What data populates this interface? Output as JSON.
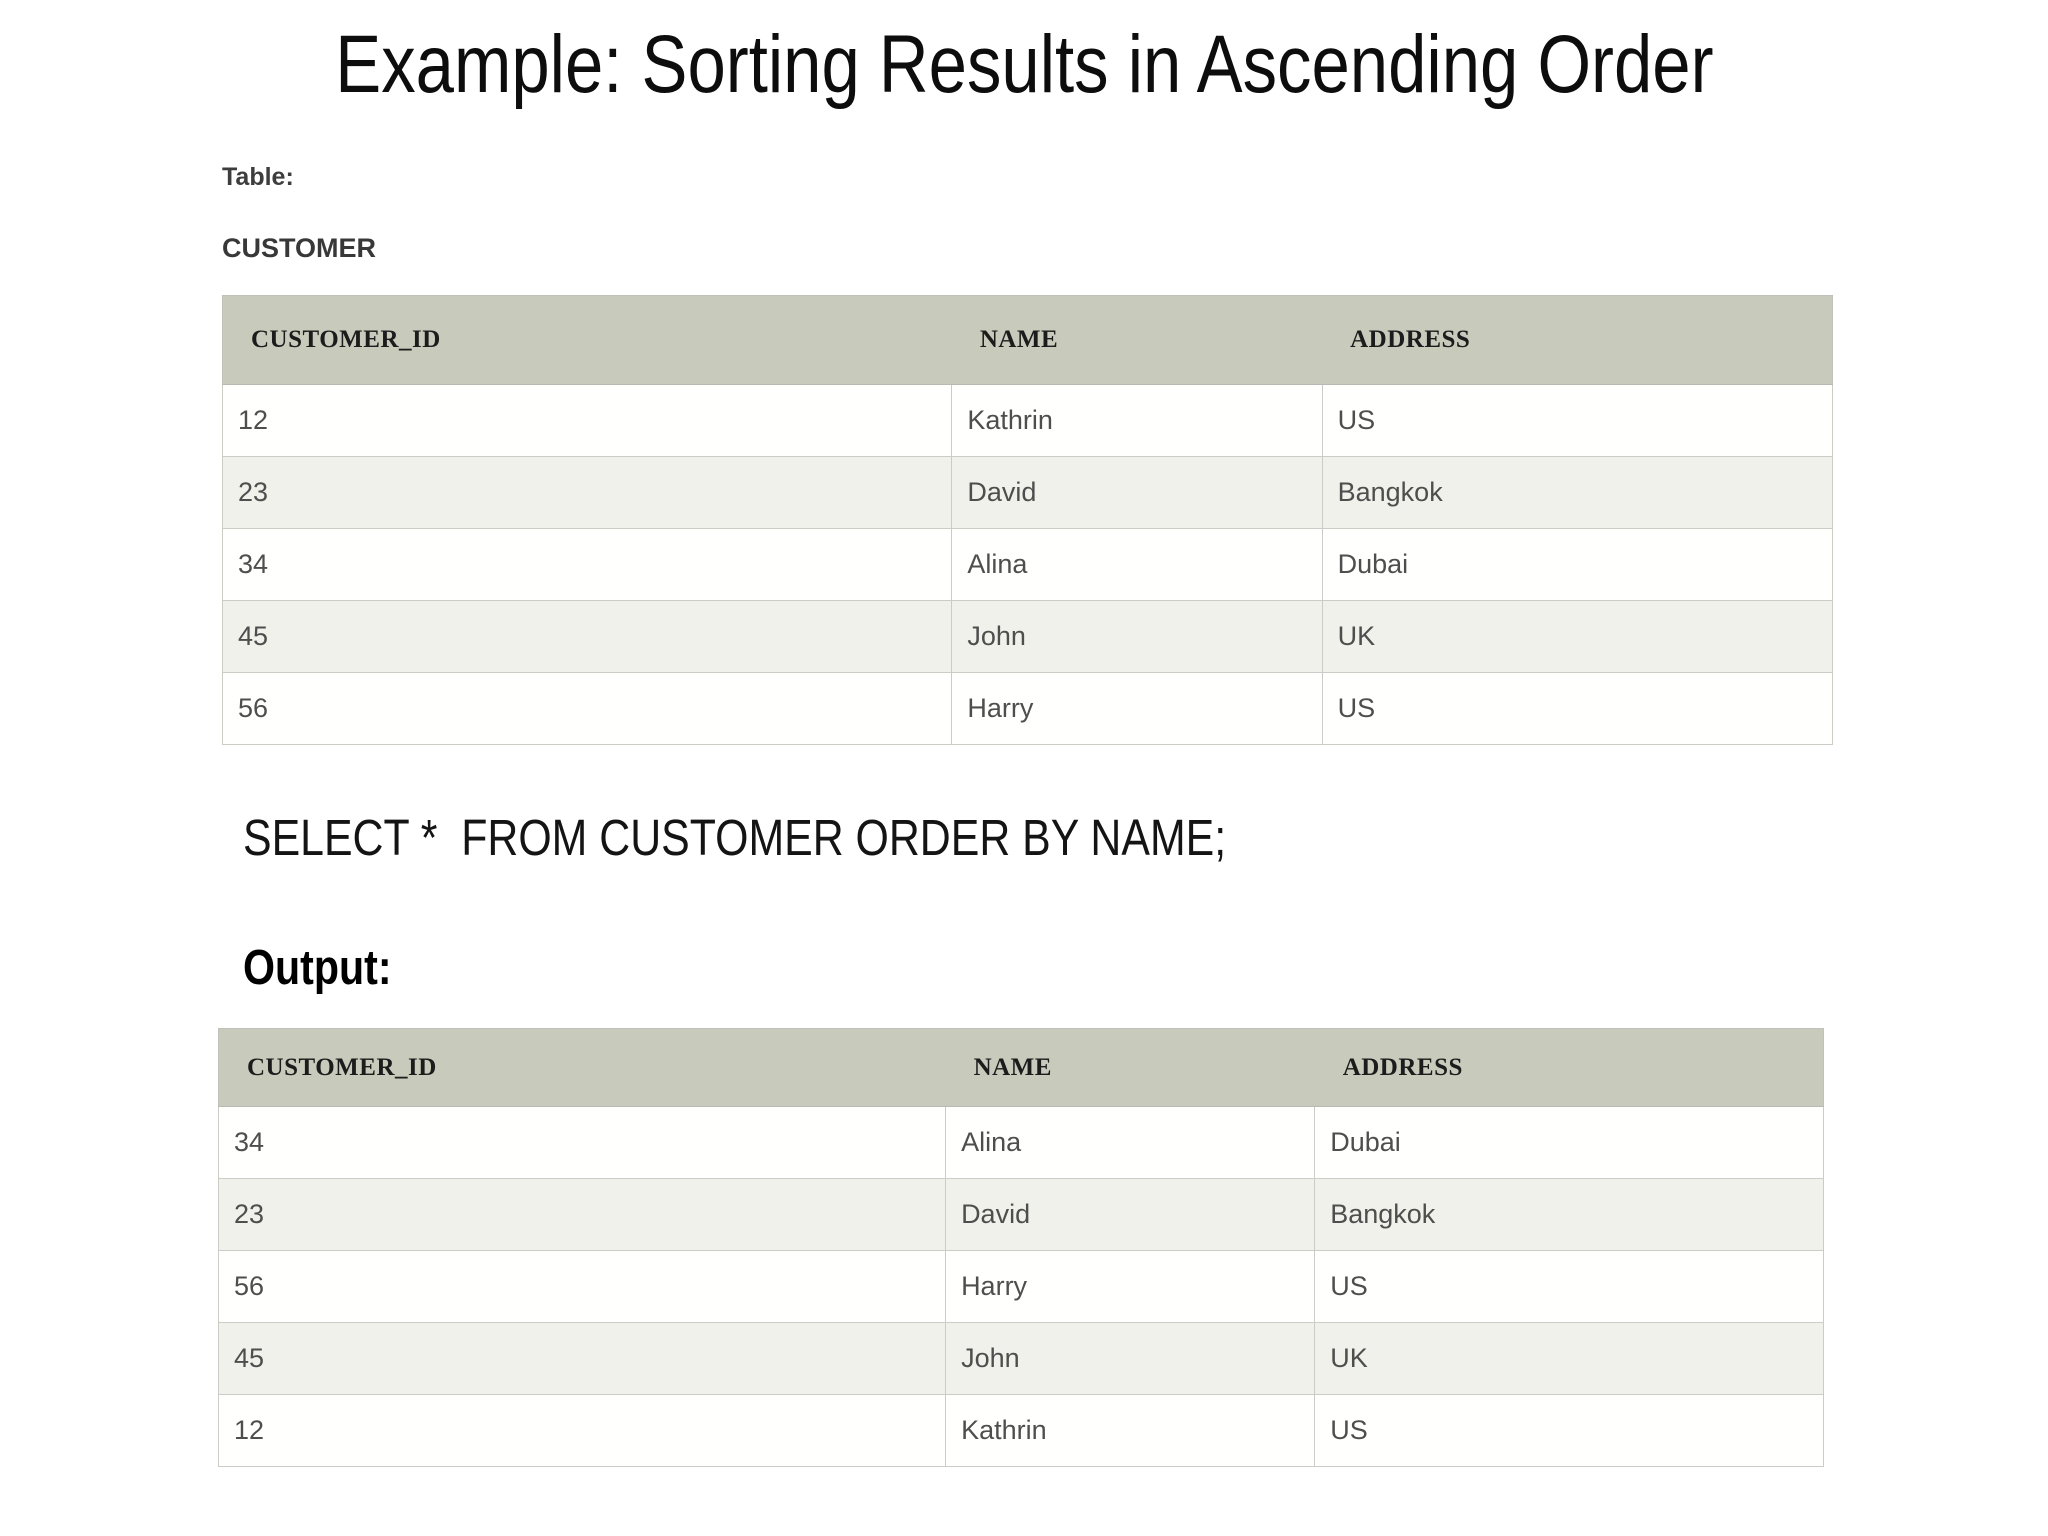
{
  "title": "Example: Sorting Results in Ascending Order",
  "input_section": {
    "table_label": "Table:",
    "table_name": "CUSTOMER",
    "columns": [
      "CUSTOMER_ID",
      "NAME",
      "ADDRESS"
    ],
    "rows": [
      [
        "12",
        "Kathrin",
        "US"
      ],
      [
        "23",
        "David",
        "Bangkok"
      ],
      [
        "34",
        "Alina",
        "Dubai"
      ],
      [
        "45",
        "John",
        "UK"
      ],
      [
        "56",
        "Harry",
        "US"
      ]
    ]
  },
  "query": "SELECT *  FROM CUSTOMER ORDER BY NAME;",
  "output_section": {
    "label": "Output:",
    "columns": [
      "CUSTOMER_ID",
      "NAME",
      "ADDRESS"
    ],
    "rows": [
      [
        "34",
        "Alina",
        "Dubai"
      ],
      [
        "23",
        "David",
        "Bangkok"
      ],
      [
        "56",
        "Harry",
        "US"
      ],
      [
        "45",
        "John",
        "UK"
      ],
      [
        "12",
        "Kathrin",
        "US"
      ]
    ]
  },
  "colors": {
    "header_bg": "#c8cbbc",
    "row_alt_bg": "#f0f1ea",
    "border": "#cbccc5"
  }
}
